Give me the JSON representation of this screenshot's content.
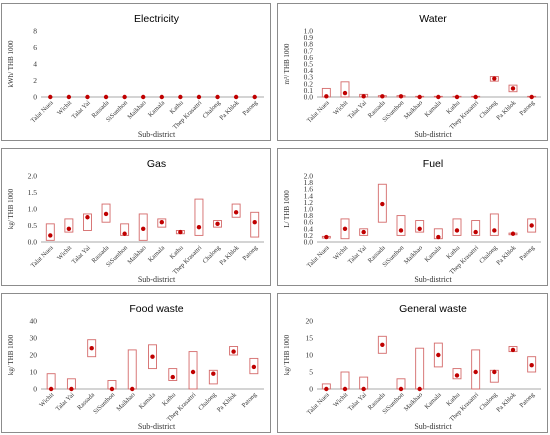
{
  "chart_data": [
    {
      "type": "scatter",
      "title": "Electricity",
      "xlabel": "Sub-district",
      "ylabel": "kWh/ THB 1000",
      "ylim": [
        0,
        8
      ],
      "yticks": [
        "0",
        "2",
        "4",
        "6",
        "8"
      ],
      "categories": [
        "Talat Nuea",
        "Wichit",
        "Talat Yai",
        "Rassada",
        "SiSunthon",
        "Maikhao",
        "Kamala",
        "Kathu",
        "Thep Krasattri",
        "Chalong",
        "Pa Khlok",
        "Patong"
      ],
      "values": [
        0,
        0,
        0,
        0,
        0,
        0,
        0,
        0,
        0,
        0,
        0,
        0
      ],
      "ranges": [
        [
          0,
          0
        ],
        [
          0,
          0
        ],
        [
          0,
          0
        ],
        [
          0,
          0
        ],
        [
          0,
          0
        ],
        [
          0,
          0
        ],
        [
          0,
          0
        ],
        [
          0,
          0
        ],
        [
          0,
          0
        ],
        [
          0,
          0
        ],
        [
          0,
          0
        ],
        [
          0,
          0
        ]
      ],
      "grid": false,
      "legend": "none"
    },
    {
      "type": "scatter",
      "title": "Water",
      "xlabel": "Sub-district",
      "ylabel": "m³/ THB 1000",
      "ylim": [
        0,
        1
      ],
      "yticks": [
        "0.0",
        "0.1",
        "0.2",
        "0.3",
        "0.4",
        "0.5",
        "0.6",
        "0.7",
        "0.8",
        "0.9",
        "1.0"
      ],
      "categories": [
        "Talat Nuea",
        "Wichit",
        "Talat Yai",
        "Rassada",
        "SiSunthon",
        "Maikhao",
        "Kamala",
        "Kathu",
        "Thep Krasattri",
        "Chalong",
        "Pa Khlok",
        "Patong"
      ],
      "values": [
        0.01,
        0.06,
        0.01,
        0.01,
        0.01,
        0.0,
        0.0,
        0.0,
        0.0,
        0.28,
        0.13,
        0.0
      ],
      "ranges": [
        [
          0.0,
          0.13
        ],
        [
          0.0,
          0.23
        ],
        [
          0.0,
          0.04
        ],
        [
          0.0,
          0.02
        ],
        [
          0.0,
          0.02
        ],
        [
          0.0,
          0.01
        ],
        [
          0.0,
          0.01
        ],
        [
          0.0,
          0.01
        ],
        [
          0.0,
          0.01
        ],
        [
          0.24,
          0.31
        ],
        [
          0.08,
          0.18
        ],
        [
          0.0,
          0.01
        ]
      ],
      "grid": false,
      "legend": "none"
    },
    {
      "type": "scatter",
      "title": "Gas",
      "xlabel": "Sub-district",
      "ylabel": "kg/ THB 1000",
      "ylim": [
        0,
        2
      ],
      "yticks": [
        "0.0",
        "0.5",
        "1.0",
        "1.5",
        "2.0"
      ],
      "categories": [
        "Talat Nuea",
        "Wichit",
        "Talat Yai",
        "Rassada",
        "SiSunthon",
        "Maikhao",
        "Kamala",
        "Kathu",
        "Thep Krasattri",
        "Chalong",
        "Pa Khlok",
        "Patong"
      ],
      "values": [
        0.2,
        0.4,
        0.75,
        0.85,
        0.25,
        0.4,
        0.6,
        0.3,
        0.45,
        0.55,
        0.9,
        0.6
      ],
      "ranges": [
        [
          0.05,
          0.55
        ],
        [
          0.3,
          0.7
        ],
        [
          0.35,
          0.85
        ],
        [
          0.6,
          1.15
        ],
        [
          0.2,
          0.55
        ],
        [
          0.05,
          0.85
        ],
        [
          0.45,
          0.7
        ],
        [
          0.25,
          0.35
        ],
        [
          0.2,
          1.3
        ],
        [
          0.45,
          0.65
        ],
        [
          0.75,
          1.15
        ],
        [
          0.15,
          0.9
        ]
      ],
      "grid": false,
      "legend": "none"
    },
    {
      "type": "scatter",
      "title": "Fuel",
      "xlabel": "Sub-district",
      "ylabel": "L/ THB 1000",
      "ylim": [
        0,
        2
      ],
      "yticks": [
        "0.0",
        "0.2",
        "0.4",
        "0.6",
        "0.8",
        "1.0",
        "1.2",
        "1.4",
        "1.6",
        "1.8",
        "2.0"
      ],
      "categories": [
        "Talat Nuea",
        "Wichit",
        "Talat Yai",
        "Rassada",
        "SiSunthon",
        "Maikhao",
        "Kamala",
        "Kathu",
        "Thep Krasattri",
        "Chalong",
        "Pa Khlok",
        "Patong"
      ],
      "values": [
        0.15,
        0.4,
        0.3,
        1.15,
        0.35,
        0.4,
        0.15,
        0.35,
        0.3,
        0.35,
        0.25,
        0.5
      ],
      "ranges": [
        [
          0.12,
          0.17
        ],
        [
          0.1,
          0.7
        ],
        [
          0.2,
          0.4
        ],
        [
          0.6,
          1.75
        ],
        [
          0.2,
          0.8
        ],
        [
          0.3,
          0.65
        ],
        [
          0.1,
          0.4
        ],
        [
          0.2,
          0.7
        ],
        [
          0.2,
          0.65
        ],
        [
          0.2,
          0.85
        ],
        [
          0.22,
          0.27
        ],
        [
          0.3,
          0.7
        ]
      ],
      "grid": false,
      "legend": "none"
    },
    {
      "type": "scatter",
      "title": "Food waste",
      "xlabel": "Sub-district",
      "ylabel": "kg/ THB 1000",
      "ylim": [
        0,
        40
      ],
      "yticks": [
        "0",
        "10",
        "20",
        "30",
        "40"
      ],
      "categories": [
        "Wichit",
        "Talat Yai",
        "Rassada",
        "SiSunthon",
        "Maikhao",
        "Kamala",
        "Kathu",
        "Thep Krasattri",
        "Chalong",
        "Pa Khlok",
        "Patong"
      ],
      "values": [
        0,
        0,
        24,
        0,
        0,
        19,
        7,
        10,
        9,
        22,
        13
      ],
      "ranges": [
        [
          0,
          9
        ],
        [
          0,
          6
        ],
        [
          19,
          29
        ],
        [
          0,
          5
        ],
        [
          0,
          23
        ],
        [
          12,
          26
        ],
        [
          5,
          12
        ],
        [
          0,
          22
        ],
        [
          3,
          11
        ],
        [
          20,
          25
        ],
        [
          9,
          18
        ]
      ],
      "grid": false,
      "legend": "none"
    },
    {
      "type": "scatter",
      "title": "General waste",
      "xlabel": "Sub-district",
      "ylabel": "kg/ THB 1000",
      "ylim": [
        0,
        20
      ],
      "yticks": [
        "0",
        "5",
        "10",
        "15",
        "20"
      ],
      "categories": [
        "Talat Nuea",
        "Wichit",
        "Talat Yai",
        "Rassada",
        "SiSunthon",
        "Maikhao",
        "Kamala",
        "Kathu",
        "Thep Krasattri",
        "Chalong",
        "Pa Khlok",
        "Patong"
      ],
      "values": [
        0,
        0,
        0,
        13,
        0,
        0,
        10,
        4,
        5,
        5,
        11.5,
        7
      ],
      "ranges": [
        [
          0,
          1.5
        ],
        [
          0,
          5
        ],
        [
          0,
          3.5
        ],
        [
          10.5,
          15.5
        ],
        [
          0,
          3
        ],
        [
          0,
          12
        ],
        [
          6.5,
          13.5
        ],
        [
          3,
          6
        ],
        [
          0,
          11.5
        ],
        [
          2,
          5.5
        ],
        [
          11,
          12.5
        ],
        [
          5,
          9.5
        ]
      ],
      "grid": false,
      "legend": "none"
    }
  ]
}
